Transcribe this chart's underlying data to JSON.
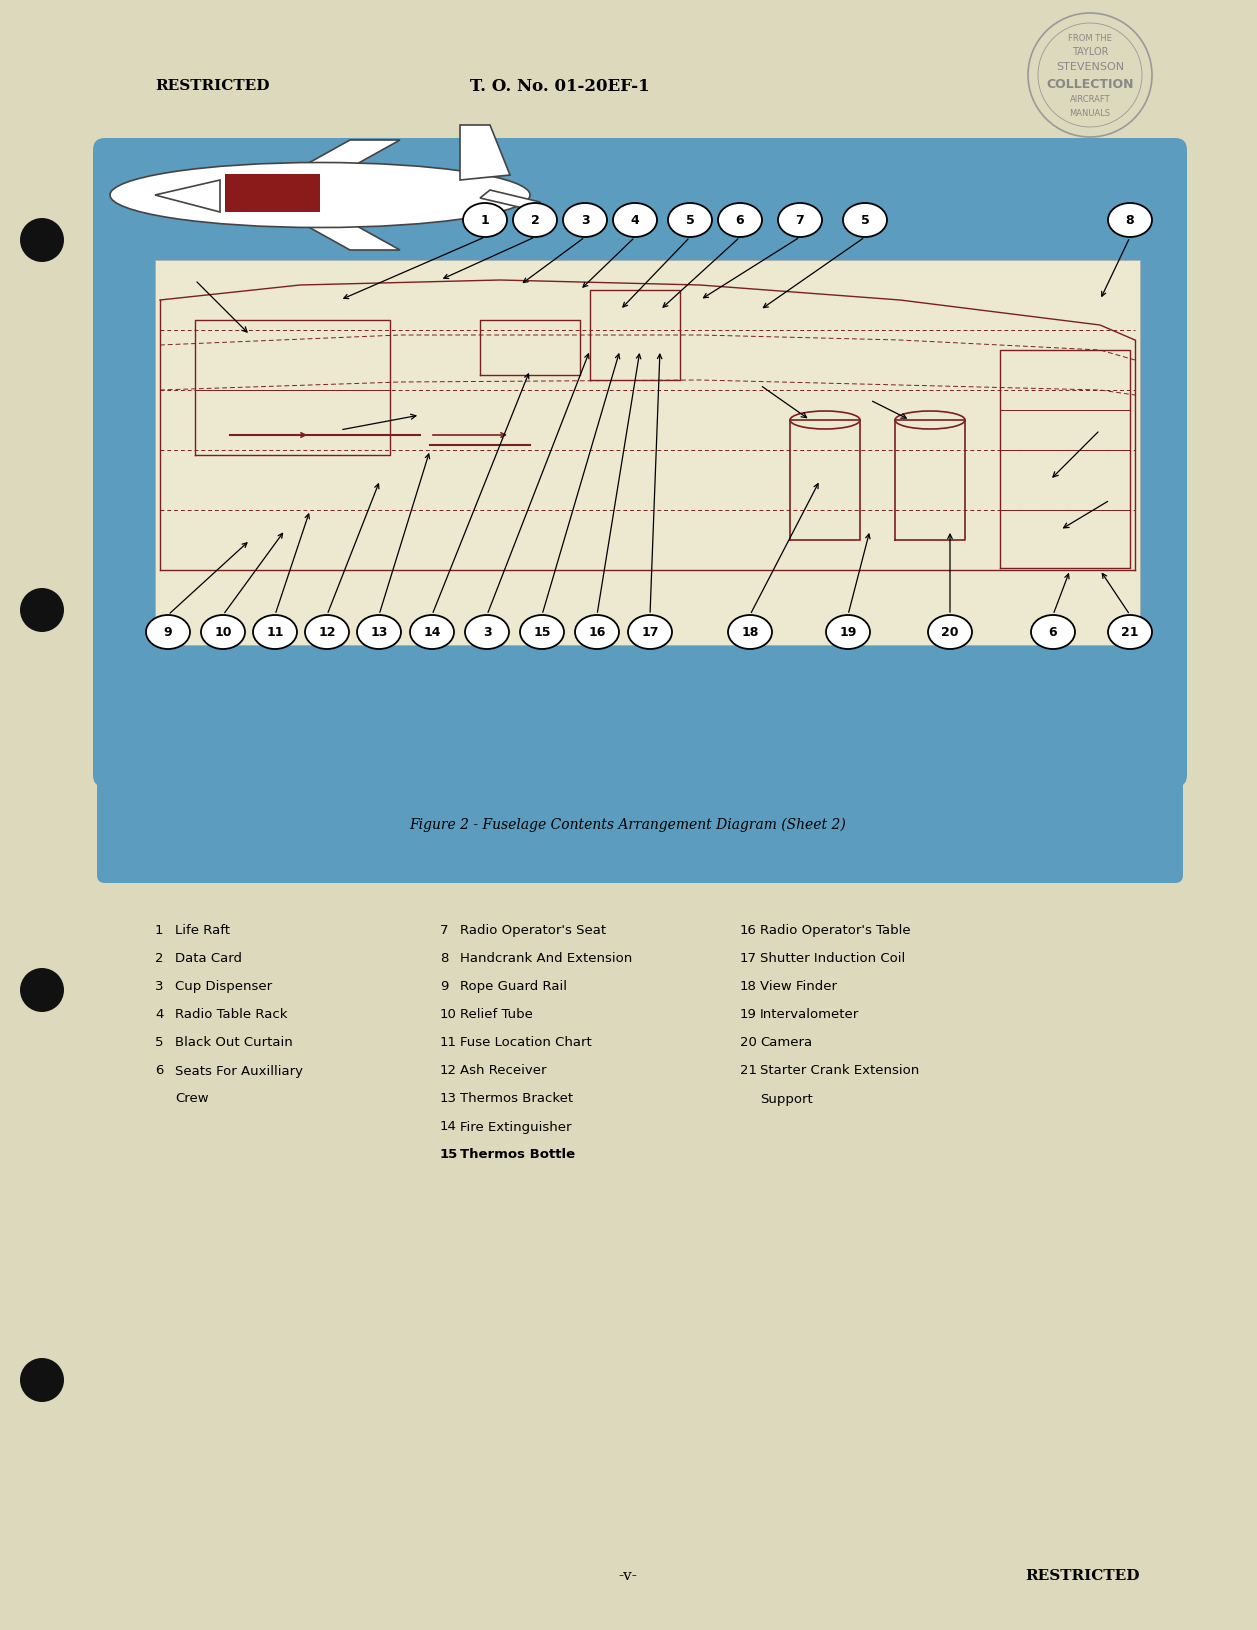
{
  "page_bg": "#ddd9bc",
  "blue_bg": "#5b9cbf",
  "diagram_bg": "#ede8d0",
  "top_left_text": "RESTRICTED",
  "top_center_text": "T. O. No. 01-20EF-1",
  "stamp_text": [
    "FROM THE",
    "TAYLOR",
    "STEVENSON",
    "COLLECTION",
    "AIRCRAFT",
    "MANUALS"
  ],
  "bottom_center_text": "-v-",
  "bottom_right_text": "RESTRICTED",
  "figure_caption": "Figure 2 - Fuselage Contents Arrangement Diagram (Sheet 2)",
  "legend_col1": [
    [
      "1",
      "Life Raft"
    ],
    [
      "2",
      "Data Card"
    ],
    [
      "3",
      "Cup Dispenser"
    ],
    [
      "4",
      "Radio Table Rack"
    ],
    [
      "5",
      "Black Out Curtain"
    ],
    [
      "6",
      "Seats For Auxilliary"
    ],
    [
      "",
      "Crew"
    ]
  ],
  "legend_col2": [
    [
      "7",
      "Radio Operator's Seat"
    ],
    [
      "8",
      "Handcrank And Extension"
    ],
    [
      "9",
      "Rope Guard Rail"
    ],
    [
      "10",
      "Relief Tube"
    ],
    [
      "11",
      "Fuse Location Chart"
    ],
    [
      "12",
      "Ash Receiver"
    ],
    [
      "13",
      "Thermos Bracket"
    ],
    [
      "14",
      "Fire Extinguisher"
    ],
    [
      "15",
      "Thermos Bottle"
    ]
  ],
  "legend_col3": [
    [
      "16",
      "Radio Operator's Table"
    ],
    [
      "17",
      "Shutter Induction Coil"
    ],
    [
      "18",
      "View Finder"
    ],
    [
      "19",
      "Intervalometer"
    ],
    [
      "20",
      "Camera"
    ],
    [
      "21",
      "Starter Crank Extension"
    ],
    [
      "",
      "Support"
    ]
  ],
  "bold_row_col2": 8,
  "top_callouts": [
    "1",
    "2",
    "3",
    "4",
    "5",
    "6",
    "7",
    "5",
    "8"
  ],
  "bottom_callouts": [
    "9",
    "10",
    "11",
    "12",
    "13",
    "14",
    "3",
    "15",
    "16",
    "17",
    "18",
    "19",
    "20",
    "6",
    "21"
  ],
  "maroon": "#7a2020",
  "dark_maroon": "#8b1a1a"
}
